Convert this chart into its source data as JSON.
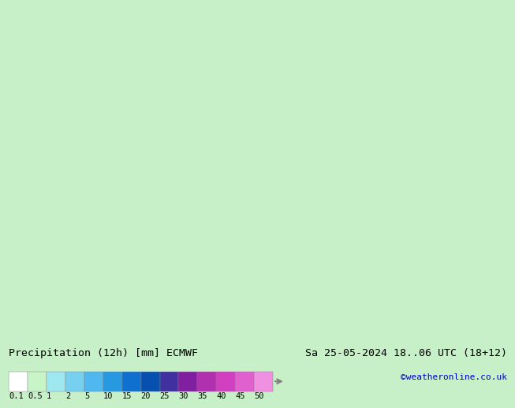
{
  "title_left": "Precipitation (12h) [mm] ECMWF",
  "title_right": "Sa 25-05-2024 18..06 UTC (18+12)",
  "credit": "©weatheronline.co.uk",
  "colorbar_levels": [
    0.1,
    0.5,
    1,
    2,
    5,
    10,
    15,
    20,
    25,
    30,
    35,
    40,
    45,
    50
  ],
  "colorbar_colors": [
    "#e0f5e0",
    "#c8eec8",
    "#a0dfa0",
    "#78c8f0",
    "#50aaee",
    "#2888dd",
    "#1060c8",
    "#0840a0",
    "#8020a0",
    "#a020a0",
    "#c030c0",
    "#d040d0",
    "#e060e0",
    "#f080f0"
  ],
  "bg_color": "#c8f0c8",
  "map_bg": "#c8f0c8",
  "bottom_bar_color": "#000000",
  "title_fontsize": 10,
  "credit_color": "#0000cc",
  "fig_width": 6.34,
  "fig_height": 4.9
}
